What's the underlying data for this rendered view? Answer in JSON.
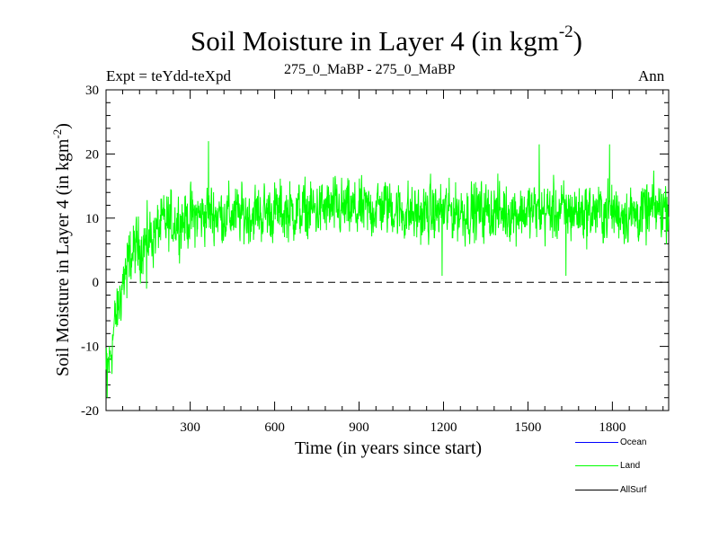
{
  "header": {
    "title_main": "Soil Moisture in Layer 4 (in kgm",
    "title_sup": "-2",
    "title_end": ")",
    "expt": "Expt = teYdd-teXpd",
    "subtitle": "275_0_MaBP - 275_0_MaBP",
    "period": "Ann"
  },
  "legend": [
    {
      "label": "Ocean",
      "color": "#0000ff"
    },
    {
      "label": "Land",
      "color": "#00ff00"
    },
    {
      "label": "AllSurf",
      "color": "#000000"
    }
  ],
  "chart_data": {
    "type": "line",
    "title": "Soil Moisture in Layer 4 (in kgm-2)",
    "xlabel": "Time (in years since start)",
    "ylabel_main": "Soil Moisture in Layer 4 (in kgm",
    "ylabel_sup": "-2",
    "ylabel_end": ")",
    "xlim": [
      1,
      2000
    ],
    "ylim": [
      -20,
      30
    ],
    "x_ticks": [
      300,
      600,
      900,
      1200,
      1500,
      1800
    ],
    "y_ticks": [
      -20,
      -10,
      0,
      10,
      20,
      30
    ],
    "zero_line": "dashed",
    "series": [
      {
        "name": "Land",
        "color": "#00ff00",
        "anchors_x": [
          1,
          15,
          30,
          45,
          60,
          80,
          100,
          130,
          160,
          200,
          250,
          300,
          350,
          370,
          400,
          500,
          600,
          700,
          800,
          900,
          1000,
          1050,
          1100,
          1200,
          1300,
          1400,
          1500,
          1600,
          1700,
          1800,
          1900,
          2000
        ],
        "anchors_y": [
          -14,
          -12,
          -7,
          -4,
          0,
          3,
          5,
          6,
          7,
          9,
          9.5,
          10,
          10.5,
          11,
          10.5,
          10.5,
          11,
          11,
          11.5,
          11,
          12,
          11,
          10.5,
          11,
          11,
          11,
          11,
          11,
          11,
          11,
          10.5,
          12
        ],
        "noise_amplitude": 3.2,
        "extremes": [
          {
            "x": 5,
            "y": -18
          },
          {
            "x": 75,
            "y": -2.5
          },
          {
            "x": 145,
            "y": -1
          },
          {
            "x": 365,
            "y": 22
          },
          {
            "x": 1195,
            "y": 1
          },
          {
            "x": 1540,
            "y": 21.5
          },
          {
            "x": 1635,
            "y": 1
          },
          {
            "x": 1790,
            "y": 21.5
          }
        ]
      }
    ]
  }
}
